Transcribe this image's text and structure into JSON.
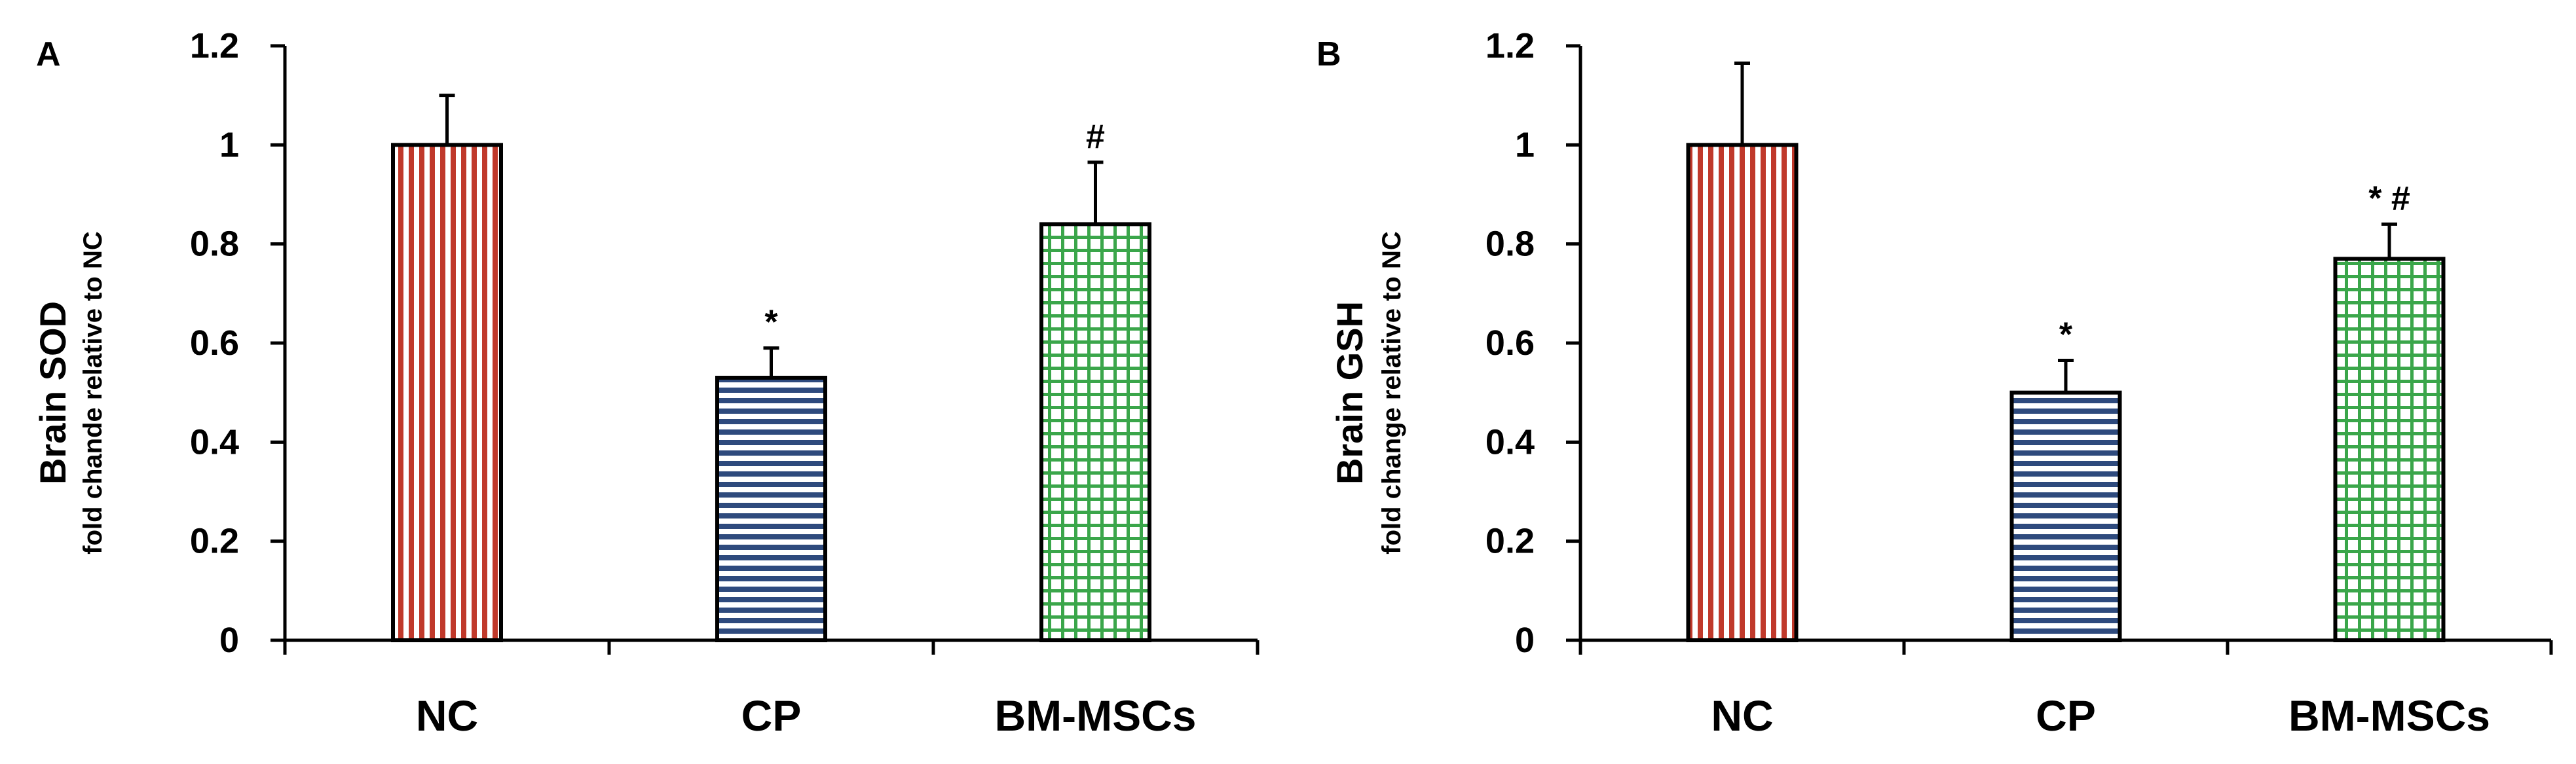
{
  "chart_data": [
    {
      "type": "bar",
      "panel_label": "A",
      "categories": [
        "NC",
        "CP",
        "BM-MSCs"
      ],
      "values": [
        1.0,
        0.53,
        0.84
      ],
      "error_bars": [
        0.1,
        0.06,
        0.125
      ],
      "annotations": [
        "",
        "*",
        "#"
      ],
      "bar_patterns": [
        "vertical-stripes",
        "horizontal-stripes",
        "grid"
      ],
      "bar_colors": [
        "#c0392b",
        "#2e4a7d",
        "#3aa64a"
      ],
      "ylabel": "Brain SOD",
      "ylabel_sub": "fold chande relative to NC",
      "ylim": [
        0,
        1.2
      ],
      "yticks": [
        "0",
        "0.2",
        "0.4",
        "0.6",
        "0.8",
        "1",
        "1.2"
      ],
      "grid": false,
      "legend": "none"
    },
    {
      "type": "bar",
      "panel_label": "B",
      "categories": [
        "NC",
        "CP",
        "BM-MSCs"
      ],
      "values": [
        1.0,
        0.5,
        0.77
      ],
      "error_bars": [
        0.165,
        0.065,
        0.07
      ],
      "annotations": [
        "",
        "*",
        "* #"
      ],
      "bar_patterns": [
        "vertical-stripes",
        "horizontal-stripes",
        "grid"
      ],
      "bar_colors": [
        "#c0392b",
        "#2e4a7d",
        "#3aa64a"
      ],
      "ylabel": "Brain GSH",
      "ylabel_sub": "fold change relative to NC",
      "ylim": [
        0,
        1.2
      ],
      "yticks": [
        "0",
        "0.2",
        "0.4",
        "0.6",
        "0.8",
        "1",
        "1.2"
      ],
      "grid": false,
      "legend": "none"
    }
  ]
}
